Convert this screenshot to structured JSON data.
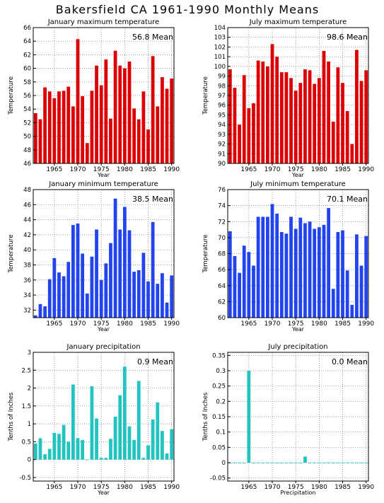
{
  "title": "Bakersfield CA  1961-1990 Monthly Means",
  "chart_data": [
    {
      "type": "bar",
      "title": "January maximum temperature",
      "ylabel": "Temperature",
      "xlabel": "Year",
      "mean_label": "56.8 Mean",
      "color": "#dd0000",
      "x": [
        1961,
        1962,
        1963,
        1964,
        1965,
        1966,
        1967,
        1968,
        1969,
        1970,
        1971,
        1972,
        1973,
        1974,
        1975,
        1976,
        1977,
        1978,
        1979,
        1980,
        1981,
        1982,
        1983,
        1984,
        1985,
        1986,
        1987,
        1988,
        1989,
        1990
      ],
      "values": [
        53.4,
        52.5,
        57.2,
        56.6,
        55.6,
        56.6,
        56.7,
        57.3,
        54.4,
        64.3,
        55.9,
        49.0,
        56.7,
        60.4,
        57.5,
        61.3,
        52.6,
        62.6,
        60.4,
        60.0,
        61.0,
        54.1,
        52.5,
        56.6,
        51.0,
        61.8,
        54.4,
        58.7,
        57.0,
        58.5
      ],
      "ylim": [
        46,
        66
      ],
      "yticks": [
        46,
        48,
        50,
        52,
        54,
        56,
        58,
        60,
        62,
        64,
        66
      ],
      "xticks": [
        1965,
        1970,
        1975,
        1980,
        1985,
        1990
      ]
    },
    {
      "type": "bar",
      "title": "July maximum temperature",
      "ylabel": "Temperature",
      "xlabel": "Year",
      "mean_label": "98.6 Mean",
      "color": "#dd0000",
      "x": [
        1961,
        1962,
        1963,
        1964,
        1965,
        1966,
        1967,
        1968,
        1969,
        1970,
        1971,
        1972,
        1973,
        1974,
        1975,
        1976,
        1977,
        1978,
        1979,
        1980,
        1981,
        1982,
        1983,
        1984,
        1985,
        1986,
        1987,
        1988,
        1989,
        1990
      ],
      "values": [
        99.7,
        97.8,
        94.0,
        99.1,
        95.7,
        96.2,
        100.6,
        100.5,
        100.0,
        102.3,
        101.0,
        99.4,
        99.4,
        98.8,
        97.5,
        98.3,
        99.7,
        99.6,
        98.2,
        98.8,
        101.6,
        100.5,
        94.3,
        99.9,
        98.3,
        95.4,
        92.0,
        101.7,
        98.5,
        99.6
      ],
      "ylim": [
        90,
        104
      ],
      "yticks": [
        90,
        91,
        92,
        93,
        94,
        95,
        96,
        97,
        98,
        99,
        100,
        101,
        102,
        103,
        104
      ],
      "xticks": [
        1965,
        1970,
        1975,
        1980,
        1985,
        1990
      ]
    },
    {
      "type": "bar",
      "title": "January minimum temperature",
      "ylabel": "Temperature",
      "xlabel": "Year",
      "mean_label": "38.5 Mean",
      "color": "#2244ee",
      "x": [
        1961,
        1962,
        1963,
        1964,
        1965,
        1966,
        1967,
        1968,
        1969,
        1970,
        1971,
        1972,
        1973,
        1974,
        1975,
        1976,
        1977,
        1978,
        1979,
        1980,
        1981,
        1982,
        1983,
        1984,
        1985,
        1986,
        1987,
        1988,
        1989,
        1990
      ],
      "values": [
        31.3,
        32.8,
        32.5,
        36.1,
        38.9,
        37.0,
        36.5,
        38.4,
        43.3,
        43.5,
        39.5,
        34.2,
        39.1,
        42.7,
        36.0,
        38.2,
        40.9,
        46.8,
        42.7,
        45.7,
        42.6,
        37.1,
        37.3,
        39.6,
        35.8,
        43.7,
        35.5,
        36.9,
        33.0,
        36.6
      ],
      "ylim": [
        31,
        48
      ],
      "yticks": [
        32,
        34,
        36,
        38,
        40,
        42,
        44,
        46,
        48
      ],
      "xticks": [
        1965,
        1970,
        1975,
        1980,
        1985,
        1990
      ]
    },
    {
      "type": "bar",
      "title": "July minimum temperature",
      "ylabel": "Temperature",
      "xlabel": "Year",
      "mean_label": "70.1 Mean",
      "color": "#2244ee",
      "x": [
        1961,
        1962,
        1963,
        1964,
        1965,
        1966,
        1967,
        1968,
        1969,
        1970,
        1971,
        1972,
        1973,
        1974,
        1975,
        1976,
        1977,
        1978,
        1979,
        1980,
        1981,
        1982,
        1983,
        1984,
        1985,
        1986,
        1987,
        1988,
        1989,
        1990
      ],
      "values": [
        70.8,
        67.7,
        65.6,
        69.0,
        68.2,
        66.5,
        72.6,
        72.6,
        72.6,
        74.2,
        73.0,
        70.7,
        70.5,
        72.6,
        71.1,
        72.5,
        71.8,
        72.0,
        71.1,
        71.3,
        71.6,
        73.7,
        63.6,
        70.7,
        70.9,
        65.9,
        61.6,
        70.4,
        66.5,
        70.2
      ],
      "ylim": [
        60,
        76
      ],
      "yticks": [
        60,
        62,
        64,
        66,
        68,
        70,
        72,
        74,
        76
      ],
      "xticks": [
        1965,
        1970,
        1975,
        1980,
        1985,
        1990
      ]
    },
    {
      "type": "bar",
      "title": "January precipitation",
      "ylabel": "Tenths of Inches",
      "xlabel": "Year",
      "mean_label": "0.9 Mean",
      "color": "#22c4c0",
      "x": [
        1961,
        1962,
        1963,
        1964,
        1965,
        1966,
        1967,
        1968,
        1969,
        1970,
        1971,
        1972,
        1973,
        1974,
        1975,
        1976,
        1977,
        1978,
        1979,
        1980,
        1981,
        1982,
        1983,
        1984,
        1985,
        1986,
        1987,
        1988,
        1989,
        1990
      ],
      "values": [
        0.45,
        0.6,
        0.15,
        0.3,
        0.75,
        0.72,
        0.97,
        0.5,
        2.1,
        0.6,
        0.55,
        0.0,
        2.05,
        1.15,
        0.05,
        0.05,
        0.58,
        1.2,
        1.8,
        2.6,
        0.93,
        0.55,
        2.2,
        0.05,
        0.4,
        1.12,
        1.6,
        0.8,
        0.17,
        0.85
      ],
      "ylim": [
        -0.6,
        3.0
      ],
      "yticks": [
        -0.5,
        0,
        0.5,
        1,
        1.5,
        2,
        2.5,
        3
      ],
      "ytick_labels": [
        "-0.5",
        "0",
        "0.5",
        "1",
        "1.5",
        "2",
        "2.5",
        "3"
      ],
      "xticks": [
        1965,
        1970,
        1975,
        1980,
        1985,
        1990
      ]
    },
    {
      "type": "bar",
      "title": "July precipitation",
      "ylabel": "Tenths of Inches",
      "xlabel": "Precipitation",
      "mean_label": "0.0 Mean",
      "color": "#22c4c0",
      "x": [
        1961,
        1962,
        1963,
        1964,
        1965,
        1966,
        1967,
        1968,
        1969,
        1970,
        1971,
        1972,
        1973,
        1974,
        1975,
        1976,
        1977,
        1978,
        1979,
        1980,
        1981,
        1982,
        1983,
        1984,
        1985,
        1986,
        1987,
        1988,
        1989,
        1990
      ],
      "values": [
        0,
        0,
        0,
        0,
        0.3,
        0,
        0,
        0,
        0,
        0,
        0,
        0,
        0,
        0,
        0,
        0,
        0.02,
        0,
        0,
        0,
        0,
        0,
        0,
        0,
        0,
        0,
        0,
        0,
        0,
        0
      ],
      "ylim": [
        -0.06,
        0.36
      ],
      "yticks": [
        -0.05,
        0,
        0.05,
        0.1,
        0.15,
        0.2,
        0.25,
        0.3,
        0.35
      ],
      "ytick_labels": [
        "-0.05",
        "0",
        "0.05",
        "0.1",
        "0.15",
        "0.2",
        "0.25",
        "0.3",
        "0.35"
      ],
      "xticks": [
        1965,
        1970,
        1975,
        1980,
        1985,
        1990
      ]
    }
  ]
}
